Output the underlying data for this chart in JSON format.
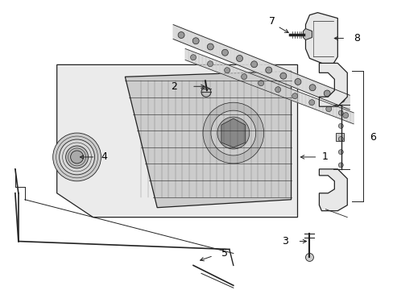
{
  "background_color": "#ffffff",
  "line_color": "#222222",
  "label_color": "#000000",
  "fig_width": 4.89,
  "fig_height": 3.6,
  "dpi": 100,
  "grille_bg": "#ebebeb",
  "grille_face": "#cccccc",
  "part_fill": "#e8e8e8",
  "part_fill2": "#d8d8d8"
}
